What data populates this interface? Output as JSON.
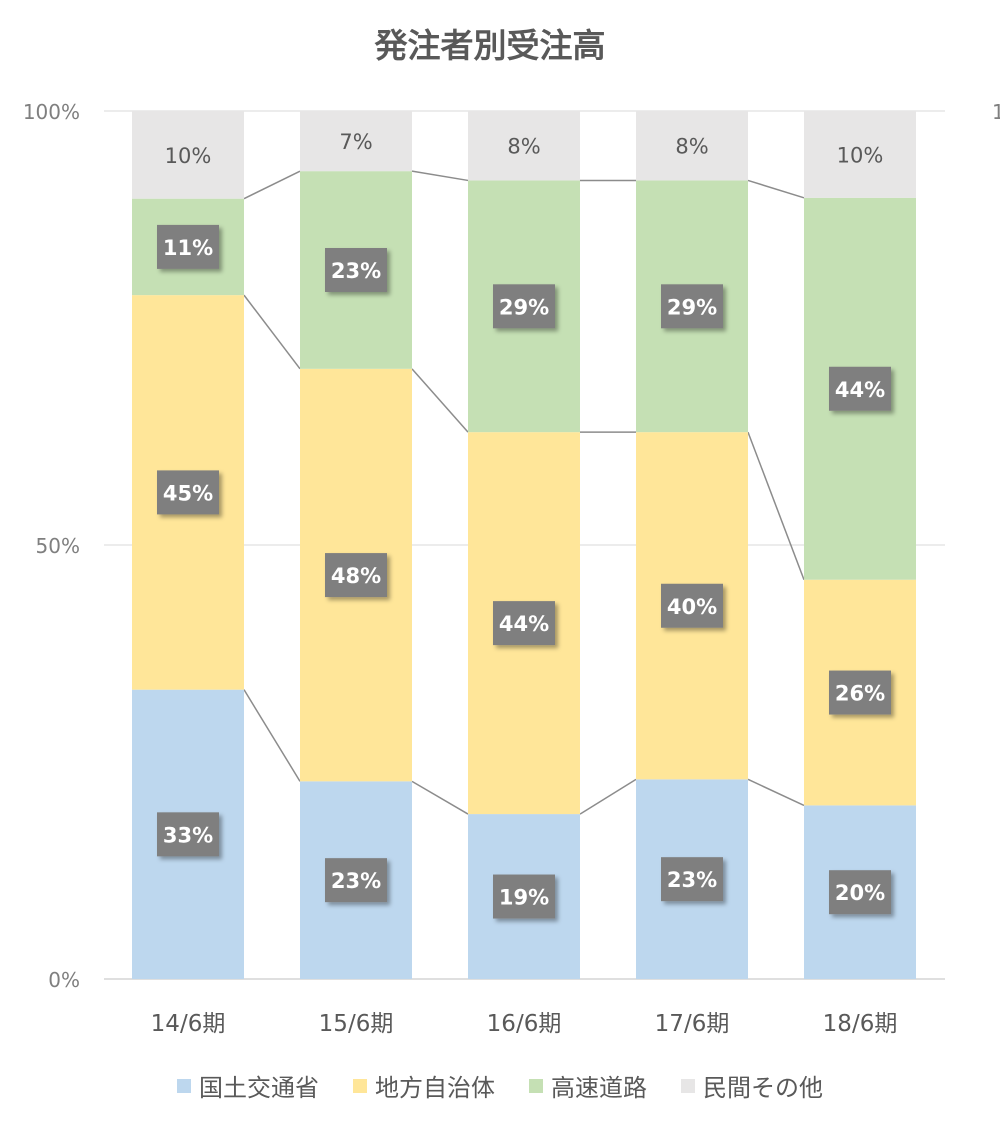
{
  "chart_data": {
    "type": "bar",
    "stacked": true,
    "title": "発注者別受注高",
    "categories": [
      "14/6期",
      "15/6期",
      "16/6期",
      "17/6期",
      "18/6期"
    ],
    "series": [
      {
        "name": "国土交通省",
        "values": [
          33,
          23,
          19,
          23,
          20
        ],
        "labels": [
          "33%",
          "23%",
          "19%",
          "23%",
          "20%"
        ],
        "color": "#bdd7ee"
      },
      {
        "name": "地方自治体",
        "values": [
          45,
          48,
          44,
          40,
          26
        ],
        "labels": [
          "45%",
          "48%",
          "44%",
          "40%",
          "26%"
        ],
        "color": "#ffe699"
      },
      {
        "name": "高速道路",
        "values": [
          11,
          23,
          29,
          29,
          44
        ],
        "labels": [
          "11%",
          "23%",
          "29%",
          "29%",
          "44%"
        ],
        "color": "#c5e0b4"
      },
      {
        "name": "民間その他",
        "values": [
          10,
          7,
          8,
          8,
          10
        ],
        "labels": [
          "10%",
          "7%",
          "8%",
          "8%",
          "10%"
        ],
        "color": "#e7e6e6"
      }
    ],
    "y_ticks": [
      "0%",
      "50%",
      "100%"
    ],
    "right_axis_fragment": "1",
    "ylim": [
      0,
      100
    ],
    "grid": true,
    "legend_position": "bottom"
  }
}
